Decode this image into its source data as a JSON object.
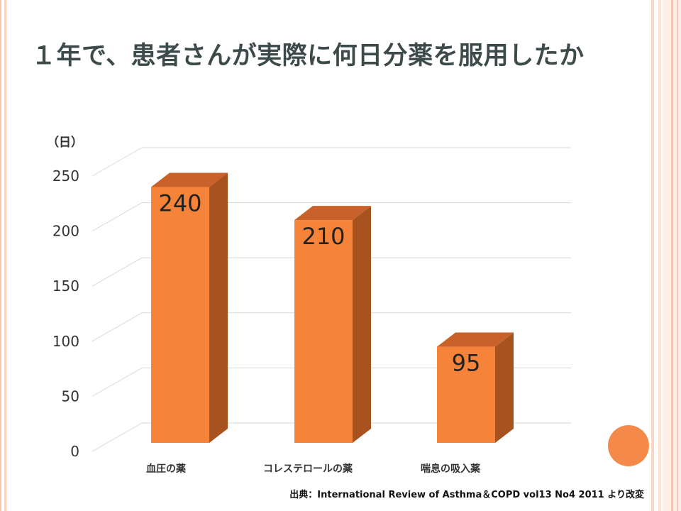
{
  "slide": {
    "title": "１年で、患者さんが実際に何日分薬を服用したか",
    "unit_label": "（日）",
    "source": "出典：International Review of Asthma＆COPD vol13 No4  2011 より改変"
  },
  "colors": {
    "bar_front": "#f5843a",
    "bar_side": "#a8521f",
    "bar_top": "#c9622a",
    "gridline": "#d9d9d9",
    "frame_stripe_outer": "#f7c6b3",
    "frame_stripe_inner": "#fbe0d4",
    "accent_circle": "#f4894a"
  },
  "chart_data": {
    "type": "bar",
    "categories": [
      "血圧の薬",
      "コレステロールの薬",
      "喘息の吸入薬"
    ],
    "values": [
      240,
      210,
      95
    ],
    "data_labels": [
      "240",
      "210",
      "95"
    ],
    "ylim": [
      0,
      250
    ],
    "yticks": [
      0,
      50,
      100,
      150,
      200,
      250
    ],
    "ytick_labels": [
      "0",
      "50",
      "100",
      "150",
      "200",
      "250"
    ],
    "ylabel": "（日）",
    "title": "",
    "grid": true,
    "three_d": true
  }
}
